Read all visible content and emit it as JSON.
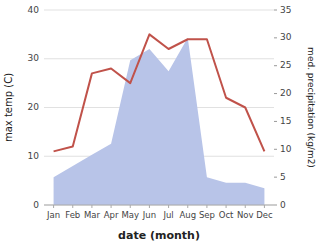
{
  "chart_data": {
    "type": "line",
    "xlabel": "date (month)",
    "ylabel": "max temp (C)",
    "y2label": "med. precipitation (kg/m2)",
    "categories": [
      "Jan",
      "Feb",
      "Mar",
      "Apr",
      "May",
      "Jun",
      "Jul",
      "Aug",
      "Sep",
      "Oct",
      "Nov",
      "Dec"
    ],
    "series": [
      {
        "type": "line",
        "color": "#c0524a",
        "values": [
          11,
          12,
          27,
          28,
          25,
          35,
          32,
          34,
          34,
          22,
          20,
          11
        ]
      },
      {
        "type": "area",
        "axis": "y2",
        "color": "#b8c4e8",
        "values": [
          5,
          7,
          9,
          11,
          26,
          28,
          24,
          30,
          5,
          4,
          4,
          3
        ]
      }
    ],
    "ylim": [
      0,
      40
    ],
    "yticks": [
      0,
      10,
      20,
      30,
      40
    ],
    "y2lim": [
      0,
      35
    ],
    "y2ticks": [
      0,
      5,
      10,
      15,
      20,
      25,
      30,
      35
    ],
    "grid": true
  }
}
